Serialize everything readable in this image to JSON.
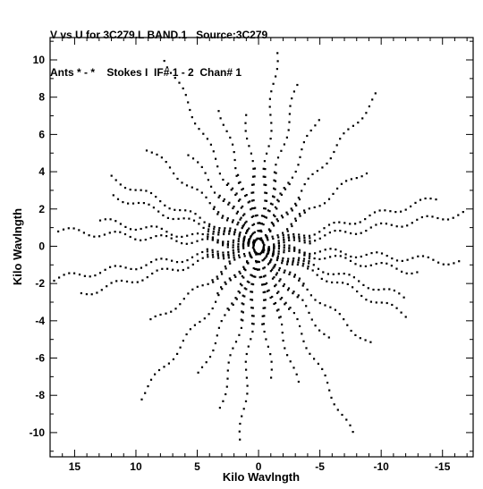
{
  "header": {
    "line1": "V vs U for 3C279.L BAND.1   Source:3C279",
    "line2": "Ants * - *    Stokes I  IF# 1 - 2  Chan# 1"
  },
  "chart_data": {
    "type": "scatter",
    "title": "V vs U for 3C279.L BAND.1   Source:3C279",
    "subtitle": "Ants * - *    Stokes I  IF# 1 - 2  Chan# 1",
    "xlabel": "Kilo Wavlngth",
    "ylabel": "Kilo Wavlngth",
    "xlim": [
      17,
      -17.5
    ],
    "ylim": [
      -11.3,
      11.2
    ],
    "x_reversed": true,
    "grid": false,
    "legend": "none",
    "x_ticks": [
      15,
      10,
      5,
      0,
      -5,
      -10,
      -15
    ],
    "y_ticks": [
      10,
      8,
      6,
      4,
      2,
      0,
      -2,
      -4,
      -6,
      -8,
      -10
    ],
    "point_color": "#000000",
    "tracks": [
      {
        "angle_deg": 98,
        "rmax": 10.8
      },
      {
        "angle_deg": 82,
        "rmax": 7.2
      },
      {
        "angle_deg": 67,
        "rmax": 8.2
      },
      {
        "angle_deg": 53,
        "rmax": 12.8
      },
      {
        "angle_deg": 41,
        "rmax": 7.8
      },
      {
        "angle_deg": 30,
        "rmax": 10.8
      },
      {
        "angle_deg": 17,
        "rmax": 12.6
      },
      {
        "angle_deg": 6,
        "rmax": 13.2
      },
      {
        "angle_deg": -6,
        "rmax": 16.8
      },
      {
        "angle_deg": 155,
        "rmax": 9.8
      },
      {
        "angle_deg": 140,
        "rmax": 12.6
      },
      {
        "angle_deg": 125,
        "rmax": 8.4
      },
      {
        "angle_deg": 110,
        "rmax": 9.6
      },
      {
        "angle_deg": 170,
        "rmax": 14.8
      },
      {
        "angle_deg": 183,
        "rmax": 16.5
      },
      {
        "angle_deg": 193,
        "rmax": 12.5
      }
    ]
  }
}
